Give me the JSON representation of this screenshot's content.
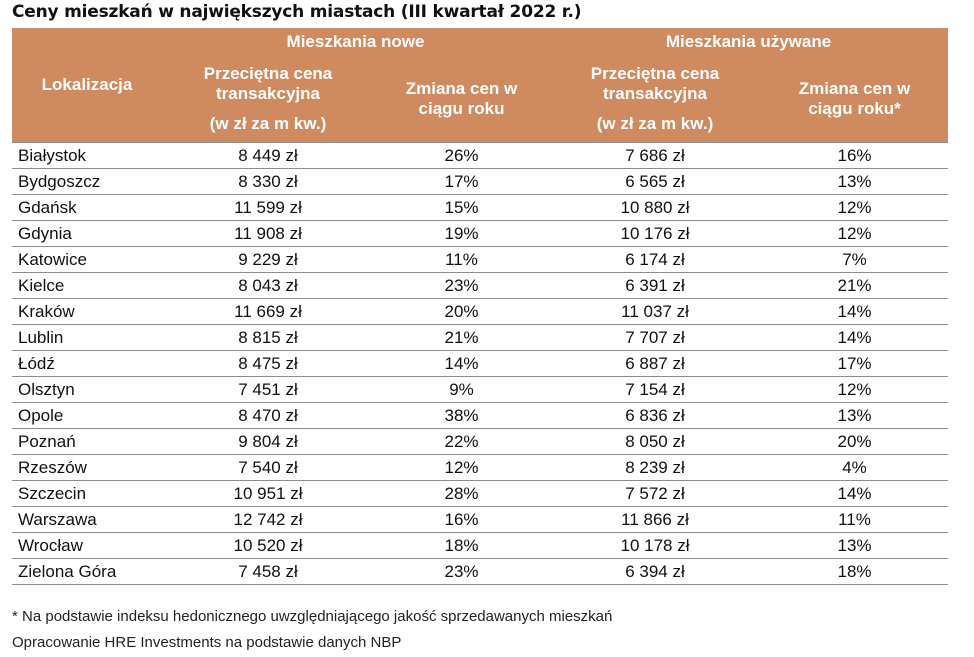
{
  "title": "Ceny mieszkań w największych miastach (III kwartał 2022 r.)",
  "header": {
    "location": "Lokalizacja",
    "group_new": "Mieszkania nowe",
    "group_used": "Mieszkania używane",
    "new_price": [
      "Przeciętna cena",
      "transakcyjna",
      "(w zł za m kw.)"
    ],
    "new_change": [
      "Zmiana cen w",
      "ciągu roku"
    ],
    "used_price": [
      "Przeciętna cena",
      "transakcyjna",
      "(w zł za m kw.)"
    ],
    "used_change": [
      "Zmiana cen w",
      "ciągu roku*"
    ]
  },
  "chart_data": {
    "type": "table",
    "title": "Ceny mieszkań w największych miastach (III kwartał 2022 r.)",
    "columns": [
      "Lokalizacja",
      "Mieszkania nowe – Przeciętna cena transakcyjna (w zł za m kw.)",
      "Mieszkania nowe – Zmiana cen w ciągu roku",
      "Mieszkania używane – Przeciętna cena transakcyjna (w zł za m kw.)",
      "Mieszkania używane – Zmiana cen w ciągu roku*"
    ],
    "rows": [
      [
        "Białystok",
        "8 449 zł",
        "26%",
        "7 686 zł",
        "16%"
      ],
      [
        "Bydgoszcz",
        "8 330 zł",
        "17%",
        "6 565 zł",
        "13%"
      ],
      [
        "Gdańsk",
        "11 599 zł",
        "15%",
        "10 880 zł",
        "12%"
      ],
      [
        "Gdynia",
        "11 908 zł",
        "19%",
        "10 176 zł",
        "12%"
      ],
      [
        "Katowice",
        "9 229 zł",
        "11%",
        "6 174 zł",
        "7%"
      ],
      [
        "Kielce",
        "8 043 zł",
        "23%",
        "6 391 zł",
        "21%"
      ],
      [
        "Kraków",
        "11 669 zł",
        "20%",
        "11 037 zł",
        "14%"
      ],
      [
        "Lublin",
        "8 815 zł",
        "21%",
        "7 707 zł",
        "14%"
      ],
      [
        "Łódź",
        "8 475 zł",
        "14%",
        "6 887 zł",
        "17%"
      ],
      [
        "Olsztyn",
        "7 451 zł",
        "9%",
        "7 154 zł",
        "12%"
      ],
      [
        "Opole",
        "8 470 zł",
        "38%",
        "6 836 zł",
        "13%"
      ],
      [
        "Poznań",
        "9 804 zł",
        "22%",
        "8 050 zł",
        "20%"
      ],
      [
        "Rzeszów",
        "7 540 zł",
        "12%",
        "8 239 zł",
        "4%"
      ],
      [
        "Szczecin",
        "10 951 zł",
        "28%",
        "7 572 zł",
        "14%"
      ],
      [
        "Warszawa",
        "12 742 zł",
        "16%",
        "11 866 zł",
        "11%"
      ],
      [
        "Wrocław",
        "10 520 zł",
        "18%",
        "10 178 zł",
        "13%"
      ],
      [
        "Zielona Góra",
        "7 458 zł",
        "23%",
        "6 394 zł",
        "18%"
      ]
    ]
  },
  "footnote": "* Na podstawie indeksu hedonicznego uwzględniającego jakość sprzedawanych mieszkań",
  "source": "Opracowanie HRE Investments na podstawie danych NBP"
}
